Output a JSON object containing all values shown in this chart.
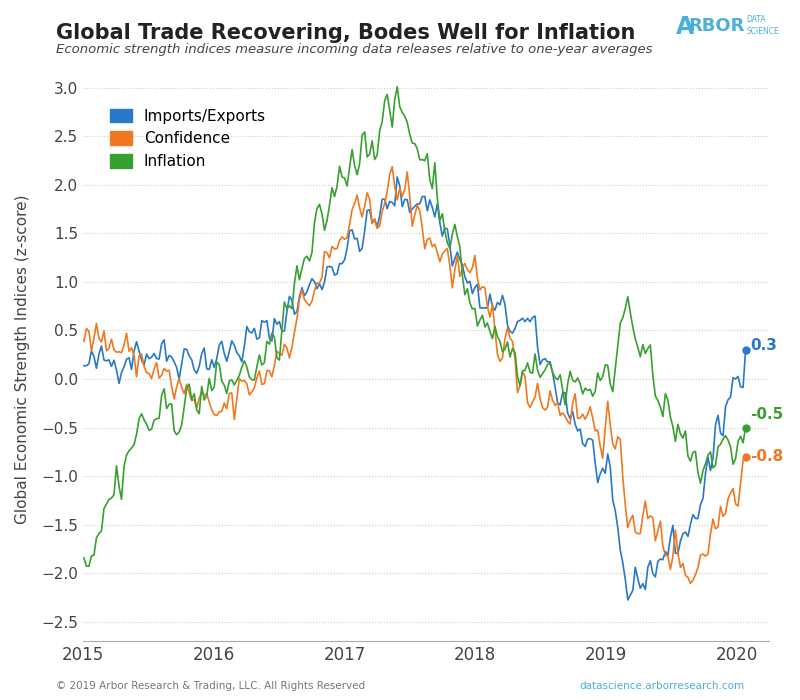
{
  "title": "Global Trade Recovering, Bodes Well for Inflation",
  "subtitle": "Economic strength indices measure incoming data releases relative to one-year averages",
  "ylabel": "Global Economic Strength Indices (z-score)",
  "footer_left": "© 2019 Arbor Research & Trading, LLC. All Rights Reserved",
  "footer_right": "datascience.arborresearch.com",
  "ylim": [
    -2.7,
    3.1
  ],
  "yticks": [
    -2.5,
    -2.0,
    -1.5,
    -1.0,
    -0.5,
    0.0,
    0.5,
    1.0,
    1.5,
    2.0,
    2.5,
    3.0
  ],
  "colors": {
    "imports_exports": "#2878c8",
    "confidence": "#f07820",
    "inflation": "#38a030"
  },
  "end_labels": {
    "imports_exports": "0.3",
    "confidence": "-0.8",
    "inflation": "-0.5"
  },
  "background_color": "#ffffff",
  "grid_color": "#cccccc",
  "title_color": "#222222",
  "subtitle_color": "#444444",
  "arbor_color": "#4ab0d8",
  "legend_labels": [
    "Imports/Exports",
    "Confidence",
    "Inflation"
  ]
}
